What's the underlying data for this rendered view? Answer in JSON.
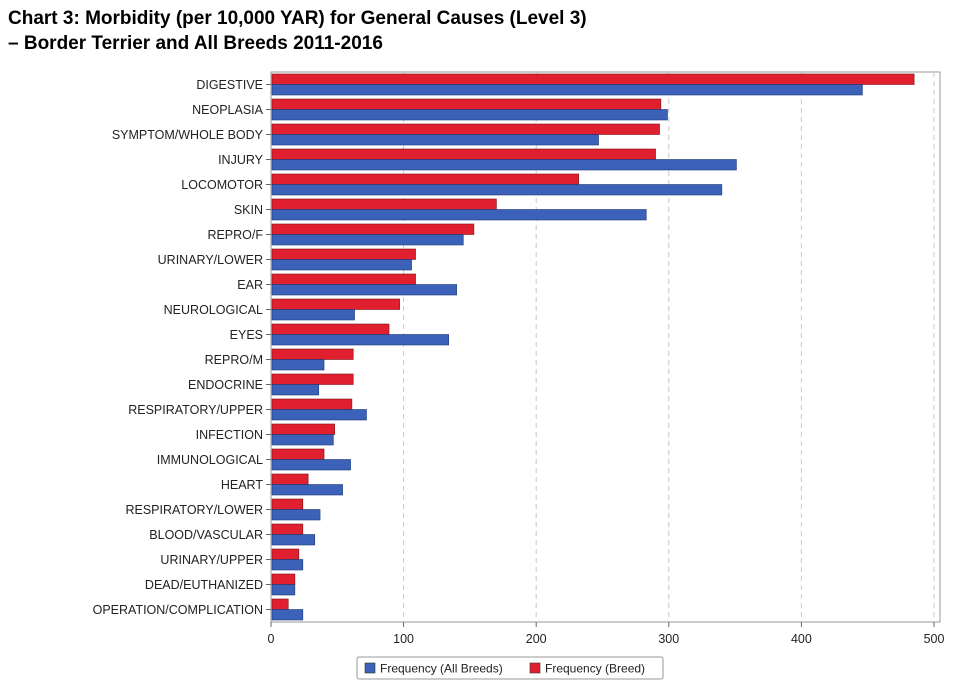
{
  "chart_data": {
    "type": "bar",
    "orientation": "horizontal",
    "title": "Chart 3: Morbidity (per 10,000 YAR) for General Causes (Level 3)",
    "subtitle": "–  Border Terrier and All Breeds 2011-2016",
    "categories": [
      "DIGESTIVE",
      "NEOPLASIA",
      "SYMPTOM/WHOLE BODY",
      "INJURY",
      "LOCOMOTOR",
      "SKIN",
      "REPRO/F",
      "URINARY/LOWER",
      "EAR",
      "NEUROLOGICAL",
      "EYES",
      "REPRO/M",
      "ENDOCRINE",
      "RESPIRATORY/UPPER",
      "INFECTION",
      "IMMUNOLOGICAL",
      "HEART",
      "RESPIRATORY/LOWER",
      "BLOOD/VASCULAR",
      "URINARY/UPPER",
      "DEAD/EUTHANIZED",
      "OPERATION/COMPLICATION"
    ],
    "series": [
      {
        "name": "Frequency (Breed)",
        "color": "#e0202e",
        "values": [
          485,
          294,
          293,
          290,
          232,
          170,
          153,
          109,
          109,
          97,
          89,
          62,
          62,
          61,
          48,
          40,
          28,
          24,
          24,
          21,
          18,
          13
        ]
      },
      {
        "name": "Frequency (All Breeds)",
        "color": "#3b62b8",
        "values": [
          446,
          299,
          247,
          351,
          340,
          283,
          145,
          106,
          140,
          63,
          134,
          40,
          36,
          72,
          47,
          60,
          54,
          37,
          33,
          24,
          18,
          24
        ]
      }
    ],
    "legend_order": [
      "Frequency (All Breeds)",
      "Frequency (Breed)"
    ],
    "xlim": [
      0,
      500
    ],
    "xticks": [
      0,
      100,
      200,
      300,
      400,
      500
    ],
    "grid": "vertical-dashed",
    "legend_position": "bottom"
  }
}
